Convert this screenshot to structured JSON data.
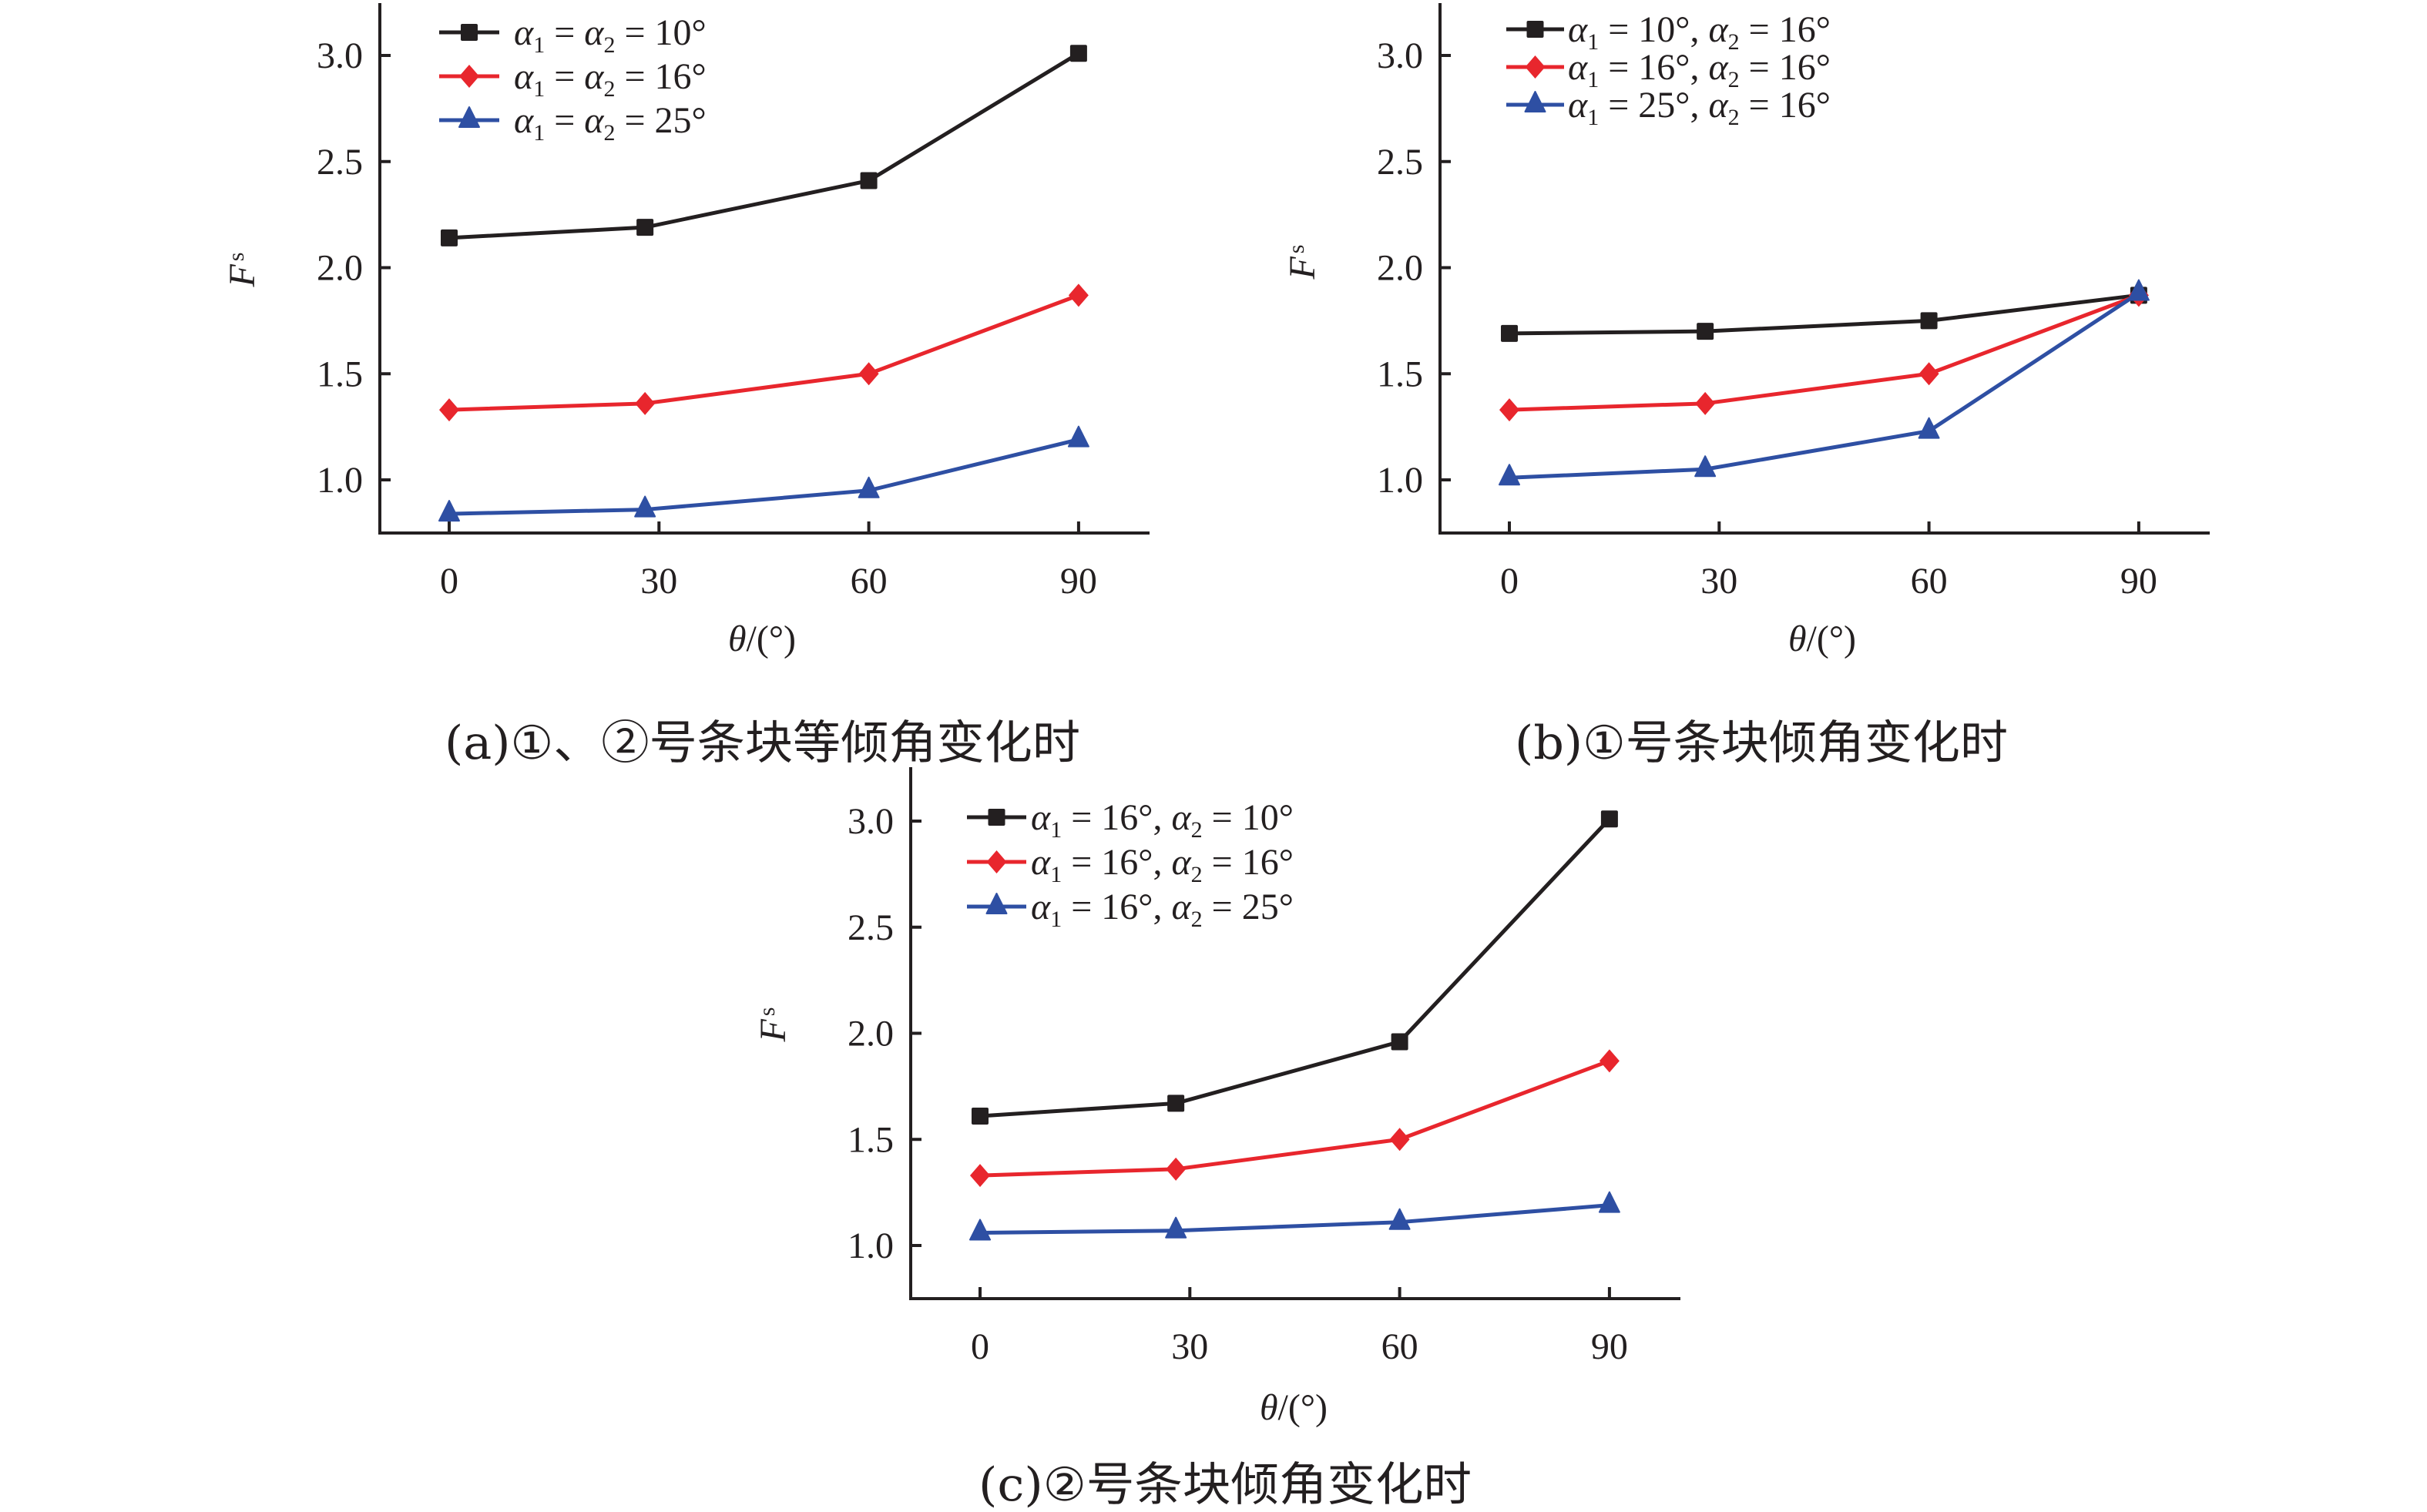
{
  "chart_data": [
    {
      "type": "line",
      "caption": "(a)①、②号条块等倾角变化时",
      "xlabel": "θ/(°)",
      "ylabel": "Fs",
      "ylabel_main": "F",
      "ylabel_sub": "s",
      "x_ticks": [
        0,
        30,
        60,
        90
      ],
      "x_tick_labels": [
        "0",
        "30",
        "60",
        "90"
      ],
      "y_ticks": [
        1.0,
        1.5,
        2.0,
        2.5,
        3.0
      ],
      "y_tick_labels": [
        "1.0",
        "1.5",
        "2.0",
        "2.5",
        "3.0"
      ],
      "xlim": [
        -8,
        100
      ],
      "ylim": [
        0.75,
        3.25
      ],
      "legend_position": "top-left",
      "x": [
        0,
        28,
        60,
        90
      ],
      "series": [
        {
          "name": "α1 = α2 = 10°",
          "legend": {
            "a": "α",
            "s1": "1",
            "eq1": " = ",
            "b": "α",
            "s2": "2",
            "rest": " = 10°"
          },
          "color": "#231f20",
          "marker": "square",
          "values": [
            2.14,
            2.19,
            2.41,
            3.01
          ]
        },
        {
          "name": "α1 = α2 = 16°",
          "legend": {
            "a": "α",
            "s1": "1",
            "eq1": " = ",
            "b": "α",
            "s2": "2",
            "rest": " = 16°"
          },
          "color": "#e8262d",
          "marker": "diamond",
          "values": [
            1.33,
            1.36,
            1.5,
            1.87
          ]
        },
        {
          "name": "α1 = α2 = 25°",
          "legend": {
            "a": "α",
            "s1": "1",
            "eq1": " = ",
            "b": "α",
            "s2": "2",
            "rest": " = 25°"
          },
          "color": "#2e4fa3",
          "marker": "triangle",
          "values": [
            0.84,
            0.86,
            0.95,
            1.19
          ]
        }
      ]
    },
    {
      "type": "line",
      "caption": "(b)①号条块倾角变化时",
      "xlabel": "θ/(°)",
      "ylabel": "Fs",
      "ylabel_main": "F",
      "ylabel_sub": "s",
      "x_ticks": [
        0,
        30,
        60,
        90
      ],
      "x_tick_labels": [
        "0",
        "30",
        "60",
        "90"
      ],
      "y_ticks": [
        1.0,
        1.5,
        2.0,
        2.5,
        3.0
      ],
      "y_tick_labels": [
        "1.0",
        "1.5",
        "2.0",
        "2.5",
        "3.0"
      ],
      "xlim": [
        -8,
        100
      ],
      "ylim": [
        0.75,
        3.25
      ],
      "legend_position": "top-left",
      "x": [
        0,
        28,
        60,
        90
      ],
      "series": [
        {
          "name": "α1 = 10°, α2 = 16°",
          "legend": {
            "a": "α",
            "s1": "1",
            "eq1": " = 10°, ",
            "b": "α",
            "s2": "2",
            "rest": " = 16°"
          },
          "color": "#231f20",
          "marker": "square",
          "values": [
            1.69,
            1.7,
            1.75,
            1.87
          ]
        },
        {
          "name": "α1 = 16°, α2 = 16°",
          "legend": {
            "a": "α",
            "s1": "1",
            "eq1": " = 16°, ",
            "b": "α",
            "s2": "2",
            "rest": " = 16°"
          },
          "color": "#e8262d",
          "marker": "diamond",
          "values": [
            1.33,
            1.36,
            1.5,
            1.87
          ]
        },
        {
          "name": "α1 = 25°, α2 = 16°",
          "legend": {
            "a": "α",
            "s1": "1",
            "eq1": " = 25°, ",
            "b": "α",
            "s2": "2",
            "rest": " = 16°"
          },
          "color": "#2e4fa3",
          "marker": "triangle",
          "values": [
            1.01,
            1.05,
            1.23,
            1.88
          ]
        }
      ]
    },
    {
      "type": "line",
      "caption": "(c)②号条块倾角变化时",
      "xlabel": "θ/(°)",
      "ylabel": "Fs",
      "ylabel_main": "F",
      "ylabel_sub": "s",
      "x_ticks": [
        0,
        30,
        60,
        90
      ],
      "x_tick_labels": [
        "0",
        "30",
        "60",
        "90"
      ],
      "y_ticks": [
        1.0,
        1.5,
        2.0,
        2.5,
        3.0
      ],
      "y_tick_labels": [
        "1.0",
        "1.5",
        "2.0",
        "2.5",
        "3.0"
      ],
      "xlim": [
        -8,
        100
      ],
      "ylim": [
        0.75,
        3.25
      ],
      "legend_position": "top-left",
      "x": [
        0,
        28,
        60,
        90
      ],
      "series": [
        {
          "name": "α1 = 16°, α2 = 10°",
          "legend": {
            "a": "α",
            "s1": "1",
            "eq1": " = 16°, ",
            "b": "α",
            "s2": "2",
            "rest": " = 10°"
          },
          "color": "#231f20",
          "marker": "square",
          "values": [
            1.61,
            1.67,
            1.96,
            3.01
          ]
        },
        {
          "name": "α1 = 16°, α2 = 16°",
          "legend": {
            "a": "α",
            "s1": "1",
            "eq1": " = 16°, ",
            "b": "α",
            "s2": "2",
            "rest": " = 16°"
          },
          "color": "#e8262d",
          "marker": "diamond",
          "values": [
            1.33,
            1.36,
            1.5,
            1.87
          ]
        },
        {
          "name": "α1 = 16°, α2 = 25°",
          "legend": {
            "a": "α",
            "s1": "1",
            "eq1": " = 16°, ",
            "b": "α",
            "s2": "2",
            "rest": " = 25°"
          },
          "color": "#2e4fa3",
          "marker": "triangle",
          "values": [
            1.06,
            1.07,
            1.11,
            1.19
          ]
        }
      ]
    }
  ]
}
